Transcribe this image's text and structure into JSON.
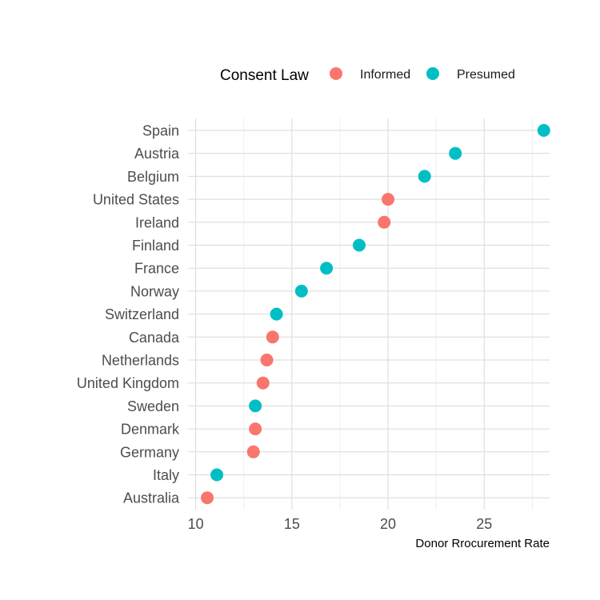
{
  "chart_data": {
    "type": "scatter",
    "xlabel": "Donor Rrocurement Rate",
    "ylabel": "",
    "xlim": [
      9.6,
      28.4
    ],
    "x_ticks": [
      10,
      15,
      20,
      25
    ],
    "x_minor_ticks": [
      12.5,
      17.5,
      22.5,
      27.5
    ],
    "grid": true,
    "legend": {
      "title": "Consent Law",
      "position": "top",
      "entries": [
        {
          "name": "Informed",
          "color": "#F8766D"
        },
        {
          "name": "Presumed",
          "color": "#00BFC4"
        }
      ]
    },
    "points": [
      {
        "country": "Spain",
        "value": 28.1,
        "law": "Presumed"
      },
      {
        "country": "Austria",
        "value": 23.5,
        "law": "Presumed"
      },
      {
        "country": "Belgium",
        "value": 21.9,
        "law": "Presumed"
      },
      {
        "country": "United States",
        "value": 20.0,
        "law": "Informed"
      },
      {
        "country": "Ireland",
        "value": 19.8,
        "law": "Informed"
      },
      {
        "country": "Finland",
        "value": 18.5,
        "law": "Presumed"
      },
      {
        "country": "France",
        "value": 16.8,
        "law": "Presumed"
      },
      {
        "country": "Norway",
        "value": 15.5,
        "law": "Presumed"
      },
      {
        "country": "Switzerland",
        "value": 14.2,
        "law": "Presumed"
      },
      {
        "country": "Canada",
        "value": 14.0,
        "law": "Informed"
      },
      {
        "country": "Netherlands",
        "value": 13.7,
        "law": "Informed"
      },
      {
        "country": "United Kingdom",
        "value": 13.5,
        "law": "Informed"
      },
      {
        "country": "Sweden",
        "value": 13.1,
        "law": "Presumed"
      },
      {
        "country": "Denmark",
        "value": 13.1,
        "law": "Informed"
      },
      {
        "country": "Germany",
        "value": 13.0,
        "law": "Informed"
      },
      {
        "country": "Italy",
        "value": 11.1,
        "law": "Presumed"
      },
      {
        "country": "Australia",
        "value": 10.6,
        "law": "Informed"
      }
    ]
  }
}
